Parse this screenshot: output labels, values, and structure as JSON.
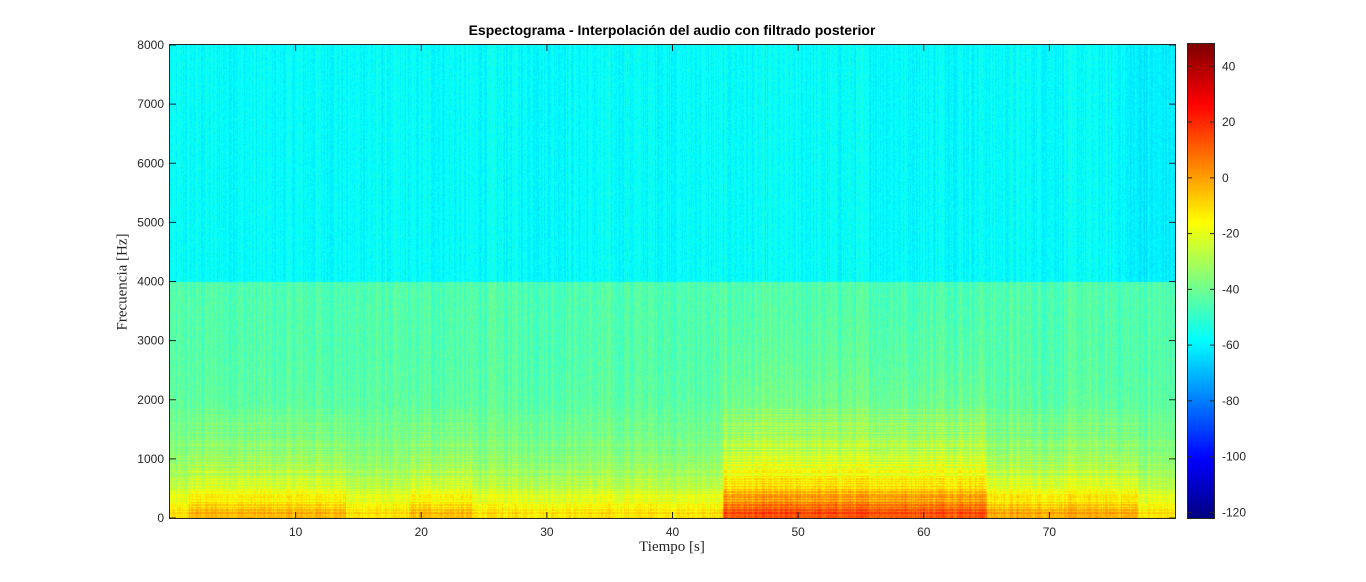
{
  "chart_data": {
    "type": "heatmap",
    "title": "Espectograma - Interpolación del audio con filtrado posterior",
    "xlabel": "Tiempo [s]",
    "ylabel": "Frecuencia [Hz]",
    "xlim": [
      0,
      80
    ],
    "ylim": [
      0,
      8000
    ],
    "x_ticks": [
      10,
      20,
      30,
      40,
      50,
      60,
      70
    ],
    "y_ticks": [
      0,
      1000,
      2000,
      3000,
      4000,
      5000,
      6000,
      7000,
      8000
    ],
    "x_tick_labels": [
      "10",
      "20",
      "30",
      "40",
      "50",
      "60",
      "70"
    ],
    "y_tick_labels": [
      "0",
      "1000",
      "2000",
      "3000",
      "4000",
      "5000",
      "6000",
      "7000",
      "8000"
    ],
    "colormap": "jet",
    "colorbar": {
      "range": [
        -122,
        48
      ],
      "ticks": [
        40,
        20,
        0,
        -20,
        -40,
        -60,
        -80,
        -100,
        -120
      ],
      "tick_labels": [
        "40",
        "20",
        "0",
        "-20",
        "-40",
        "-60",
        "-80",
        "-100",
        "-120"
      ]
    },
    "filter_cutoff_hz": 4000,
    "grid": false,
    "description_levels_db": {
      "above_4000hz": -58,
      "below_4000hz_baseline": -45,
      "low_frequency_bands": -5,
      "loud_section_start_s": 44,
      "loud_section_end_s": 65
    }
  }
}
